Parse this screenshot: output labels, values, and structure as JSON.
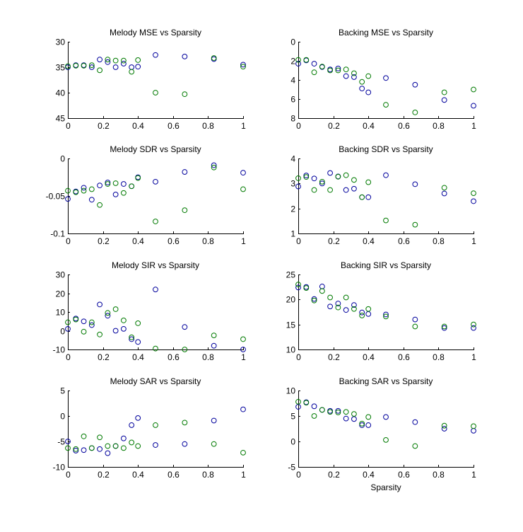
{
  "colors": {
    "series_a": "#00009c",
    "series_b": "#007a00"
  },
  "chart_data": [
    {
      "type": "scatter",
      "title": "Melody MSE vs Sparsity",
      "xlabel": "",
      "xlim": [
        0,
        1
      ],
      "ylim": [
        30,
        45
      ],
      "y_reversed": true,
      "xticks": [
        "0",
        "0.2",
        "0.4",
        "0.6",
        "0.8",
        "1"
      ],
      "yticks": [
        "30",
        "35",
        "40",
        "45"
      ],
      "x": [
        0,
        0.0455,
        0.0909,
        0.1364,
        0.1818,
        0.2273,
        0.2727,
        0.3182,
        0.3636,
        0.4,
        0.5,
        0.6667,
        0.8333,
        1
      ],
      "series": [
        {
          "color": "blue",
          "values": [
            35.0,
            34.6,
            34.6,
            35.0,
            33.5,
            34.0,
            35.0,
            34.3,
            35.0,
            34.9,
            32.6,
            32.9,
            33.4,
            34.5
          ]
        },
        {
          "color": "green",
          "values": [
            34.8,
            34.7,
            34.7,
            34.6,
            35.6,
            33.5,
            33.7,
            33.7,
            35.9,
            33.6,
            40.0,
            40.3,
            33.2,
            34.9
          ]
        }
      ]
    },
    {
      "type": "scatter",
      "title": "Backing MSE vs Sparsity",
      "xlabel": "",
      "xlim": [
        0,
        1
      ],
      "ylim": [
        0,
        8
      ],
      "y_reversed": true,
      "xticks": [
        "0",
        "0.2",
        "0.4",
        "0.6",
        "0.8",
        "1"
      ],
      "yticks": [
        "0",
        "2",
        "4",
        "6",
        "8"
      ],
      "x": [
        0,
        0.0455,
        0.0909,
        0.1364,
        0.1818,
        0.2273,
        0.2727,
        0.3182,
        0.3636,
        0.4,
        0.5,
        0.6667,
        0.8333,
        1
      ],
      "series": [
        {
          "color": "blue",
          "values": [
            2.3,
            1.95,
            2.3,
            2.65,
            2.9,
            2.8,
            3.6,
            3.7,
            4.9,
            5.3,
            3.8,
            4.5,
            6.1,
            6.7
          ]
        },
        {
          "color": "green",
          "values": [
            1.9,
            1.9,
            3.2,
            2.6,
            3.0,
            3.0,
            2.9,
            3.3,
            4.2,
            3.6,
            6.6,
            7.4,
            5.3,
            5.0
          ]
        }
      ]
    },
    {
      "type": "scatter",
      "title": "Melody SDR vs Sparsity",
      "xlabel": "",
      "xlim": [
        0,
        1
      ],
      "ylim": [
        -0.1,
        0
      ],
      "y_reversed": false,
      "xticks": [
        "0",
        "0.2",
        "0.4",
        "0.6",
        "0.8",
        "1"
      ],
      "yticks": [
        "-0.1",
        "-0.05",
        "0"
      ],
      "x": [
        0,
        0.0455,
        0.0909,
        0.1364,
        0.1818,
        0.2273,
        0.2727,
        0.3182,
        0.3636,
        0.4,
        0.5,
        0.6667,
        0.8333,
        1
      ],
      "series": [
        {
          "color": "blue",
          "values": [
            -0.054,
            -0.044,
            -0.039,
            -0.055,
            -0.036,
            -0.032,
            -0.048,
            -0.034,
            -0.037,
            -0.025,
            -0.031,
            -0.018,
            -0.009,
            -0.019
          ]
        },
        {
          "color": "green",
          "values": [
            -0.043,
            -0.045,
            -0.043,
            -0.041,
            -0.062,
            -0.034,
            -0.033,
            -0.046,
            -0.037,
            -0.026,
            -0.084,
            -0.069,
            -0.012,
            -0.041
          ]
        }
      ]
    },
    {
      "type": "scatter",
      "title": "Backing SDR vs Sparsity",
      "xlabel": "",
      "xlim": [
        0,
        1
      ],
      "ylim": [
        1,
        4
      ],
      "y_reversed": false,
      "xticks": [
        "0",
        "0.2",
        "0.4",
        "0.6",
        "0.8",
        "1"
      ],
      "yticks": [
        "1",
        "2",
        "3",
        "4"
      ],
      "x": [
        0,
        0.0455,
        0.0909,
        0.1364,
        0.1818,
        0.2273,
        0.2727,
        0.3182,
        0.3636,
        0.4,
        0.5,
        0.6667,
        0.8333,
        1
      ],
      "series": [
        {
          "color": "blue",
          "values": [
            2.88,
            3.32,
            3.2,
            3.0,
            3.42,
            3.28,
            2.74,
            2.79,
            2.45,
            2.45,
            3.33,
            2.97,
            2.6,
            2.29
          ]
        },
        {
          "color": "green",
          "values": [
            3.21,
            3.26,
            2.74,
            3.07,
            2.74,
            3.27,
            3.33,
            3.14,
            2.45,
            3.05,
            1.52,
            1.35,
            2.83,
            2.61
          ]
        }
      ]
    },
    {
      "type": "scatter",
      "title": "Melody SIR vs Sparsity",
      "xlabel": "",
      "xlim": [
        0,
        1
      ],
      "ylim": [
        -10,
        30
      ],
      "y_reversed": false,
      "xticks": [
        "0",
        "0.2",
        "0.4",
        "0.6",
        "0.8",
        "1"
      ],
      "yticks": [
        "-10",
        "0",
        "10",
        "20",
        "30"
      ],
      "x": [
        0,
        0.0455,
        0.0909,
        0.1364,
        0.1818,
        0.2273,
        0.2727,
        0.3182,
        0.3636,
        0.4,
        0.5,
        0.6667,
        0.8333,
        1
      ],
      "series": [
        {
          "color": "blue",
          "values": [
            1,
            6.5,
            5,
            3,
            14,
            8,
            0,
            1,
            -4.5,
            -6,
            22,
            2,
            -8,
            -10
          ]
        },
        {
          "color": "green",
          "values": [
            4.5,
            6,
            -0.5,
            4.5,
            -2,
            9.5,
            11.5,
            5.5,
            -3.5,
            4,
            -9.5,
            -10,
            -2.5,
            -4.5
          ]
        }
      ]
    },
    {
      "type": "scatter",
      "title": "Backing SIR vs Sparsity",
      "xlabel": "",
      "xlim": [
        0,
        1
      ],
      "ylim": [
        10,
        25
      ],
      "y_reversed": false,
      "xticks": [
        "0",
        "0.2",
        "0.4",
        "0.6",
        "0.8",
        "1"
      ],
      "yticks": [
        "10",
        "15",
        "20",
        "25"
      ],
      "x": [
        0,
        0.0455,
        0.0909,
        0.1364,
        0.1818,
        0.2273,
        0.2727,
        0.3182,
        0.3636,
        0.4,
        0.5,
        0.6667,
        0.8333,
        1
      ],
      "series": [
        {
          "color": "blue",
          "values": [
            22.4,
            22.5,
            20.1,
            22.6,
            18.6,
            19.2,
            17.9,
            18.9,
            17.4,
            17.1,
            17.0,
            16.0,
            14.3,
            14.3
          ]
        },
        {
          "color": "green",
          "values": [
            23.0,
            22.3,
            19.8,
            21.7,
            20.4,
            18.4,
            20.4,
            18.1,
            16.8,
            18.1,
            16.6,
            14.6,
            14.6,
            15.0
          ]
        }
      ]
    },
    {
      "type": "scatter",
      "title": "Melody SAR vs Sparsity",
      "xlabel": "",
      "xlim": [
        0,
        1
      ],
      "ylim": [
        -10,
        5
      ],
      "y_reversed": false,
      "xticks": [
        "0",
        "0.2",
        "0.4",
        "0.6",
        "0.8",
        "1"
      ],
      "yticks": [
        "-10",
        "-5",
        "0",
        "5"
      ],
      "x": [
        0,
        0.0455,
        0.0909,
        0.1364,
        0.1818,
        0.2273,
        0.2727,
        0.3182,
        0.3636,
        0.4,
        0.5,
        0.6667,
        0.8333,
        1
      ],
      "series": [
        {
          "color": "blue",
          "values": [
            -5.0,
            -6.8,
            -6.7,
            -6.3,
            -6.5,
            -7.3,
            -5.9,
            -4.4,
            -1.8,
            -0.4,
            -5.7,
            -5.5,
            -0.9,
            1.3
          ]
        },
        {
          "color": "green",
          "values": [
            -6.3,
            -6.5,
            -4.0,
            -6.3,
            -4.2,
            -5.9,
            -5.9,
            -6.3,
            -5.2,
            -5.9,
            -1.8,
            -1.3,
            -5.5,
            -7.2
          ]
        }
      ]
    },
    {
      "type": "scatter",
      "title": "Backing SAR vs Sparsity",
      "xlabel": "Sparsity",
      "xlim": [
        0,
        1
      ],
      "ylim": [
        -5,
        10
      ],
      "y_reversed": false,
      "xticks": [
        "0",
        "0.2",
        "0.4",
        "0.6",
        "0.8",
        "1"
      ],
      "yticks": [
        "-5",
        "0",
        "5",
        "10"
      ],
      "x": [
        0,
        0.0455,
        0.0909,
        0.1364,
        0.1818,
        0.2273,
        0.2727,
        0.3182,
        0.3636,
        0.4,
        0.5,
        0.6667,
        0.8333,
        1
      ],
      "series": [
        {
          "color": "blue",
          "values": [
            6.8,
            7.7,
            6.9,
            6.2,
            6.0,
            6.0,
            4.5,
            4.4,
            3.2,
            3.2,
            4.8,
            3.8,
            2.5,
            2.1
          ]
        },
        {
          "color": "green",
          "values": [
            7.8,
            7.6,
            5.0,
            6.2,
            5.8,
            5.7,
            5.8,
            5.4,
            3.5,
            4.8,
            0.3,
            -0.9,
            3.1,
            3.0
          ]
        }
      ]
    }
  ]
}
